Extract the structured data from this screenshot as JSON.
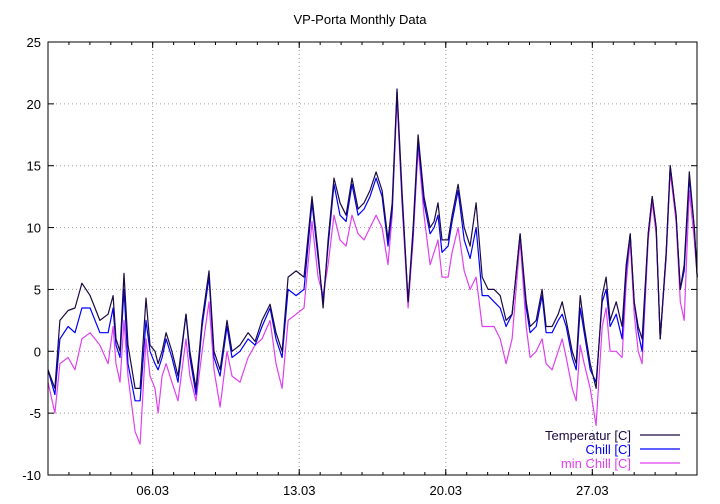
{
  "chart_data": {
    "type": "line",
    "title": "VP-Porta Monthly Data",
    "xlabel": "",
    "ylabel": "",
    "xlim": [
      0,
      31
    ],
    "ylim": [
      -10,
      25
    ],
    "x_unit": "days since 01.03",
    "yticks": [
      -10,
      -5,
      0,
      5,
      10,
      15,
      20,
      25
    ],
    "xticks": [
      {
        "value": 5,
        "label": "06.03"
      },
      {
        "value": 12,
        "label": "13.03"
      },
      {
        "value": 19,
        "label": "20.03"
      },
      {
        "value": 26,
        "label": "27.03"
      }
    ],
    "grid": true,
    "legend_position": "bottom-right",
    "x": [
      0.0,
      0.33,
      0.57,
      0.96,
      1.29,
      1.62,
      2.01,
      2.48,
      2.87,
      3.11,
      3.25,
      3.44,
      3.63,
      3.82,
      4.16,
      4.4,
      4.68,
      4.87,
      5.11,
      5.26,
      5.45,
      5.64,
      5.92,
      6.21,
      6.59,
      6.78,
      7.07,
      7.36,
      7.69,
      7.93,
      8.22,
      8.55,
      8.79,
      9.17,
      9.56,
      9.89,
      10.22,
      10.61,
      10.89,
      11.18,
      11.47,
      11.85,
      12.23,
      12.61,
      12.9,
      13.14,
      13.38,
      13.66,
      13.95,
      14.24,
      14.52,
      14.81,
      15.1,
      15.38,
      15.67,
      15.96,
      16.24,
      16.44,
      16.67,
      16.91,
      17.2,
      17.44,
      17.68,
      17.96,
      18.25,
      18.44,
      18.63,
      18.82,
      19.11,
      19.3,
      19.59,
      19.88,
      20.16,
      20.45,
      20.74,
      21.02,
      21.31,
      21.6,
      21.88,
      22.17,
      22.55,
      22.84,
      23.03,
      23.32,
      23.6,
      23.79,
      24.08,
      24.37,
      24.56,
      24.75,
      25.04,
      25.23,
      25.42,
      25.61,
      25.9,
      26.18,
      26.47,
      26.66,
      26.85,
      27.14,
      27.42,
      27.62,
      27.81,
      28.0,
      28.19,
      28.38,
      28.67,
      28.86,
      29.05,
      29.24,
      29.53,
      29.72,
      30.0,
      30.2,
      30.39,
      30.63,
      30.87,
      31.01
    ],
    "series": [
      {
        "name": "Temperatur [C]",
        "color": "#1c0a40",
        "values": [
          -1.5,
          -3,
          2.5,
          3.3,
          3.5,
          5.5,
          4.5,
          2.5,
          3,
          4.5,
          1,
          0,
          6.3,
          0.5,
          -3,
          -3,
          4.3,
          0.5,
          0,
          -1,
          0,
          1.5,
          0,
          -2,
          3,
          0,
          -3,
          2.5,
          6.5,
          0,
          -1.5,
          2.5,
          0,
          0.5,
          1.5,
          0.8,
          2.5,
          3.8,
          1.5,
          0,
          6,
          6.5,
          6,
          12.5,
          8,
          3.5,
          9,
          14,
          12,
          11,
          14,
          11.5,
          12,
          13,
          14.5,
          13,
          9,
          12,
          21.2,
          13,
          4,
          10,
          17.5,
          12.5,
          10,
          10.5,
          12,
          9,
          9,
          11,
          13.5,
          10,
          8.5,
          12,
          6,
          5,
          5,
          4.5,
          2.5,
          3,
          9.5,
          4,
          2,
          2.5,
          5,
          2,
          2,
          3,
          4,
          2.5,
          0,
          -1,
          4.5,
          2,
          -1,
          -3,
          4.5,
          6,
          2.5,
          4,
          2,
          7,
          9.5,
          4,
          2,
          1,
          9.5,
          12.5,
          10,
          1,
          8,
          15,
          11,
          5,
          7,
          14.5,
          10,
          6
        ]
      },
      {
        "name": "Chill [C]",
        "color": "#0000ff",
        "values": [
          -1.5,
          -3.5,
          1,
          2,
          1.5,
          3.5,
          3.5,
          1.5,
          1.5,
          3.5,
          0.5,
          -0.5,
          5,
          -1,
          -4,
          -4,
          2.5,
          0,
          -1,
          -1.5,
          -0.5,
          1,
          -0.5,
          -2.5,
          3,
          -0.5,
          -3.5,
          2,
          6,
          -0.5,
          -2,
          2,
          -0.5,
          0,
          1,
          0.5,
          2,
          3.5,
          1,
          -0.5,
          5,
          4.5,
          5,
          12,
          7.5,
          4,
          8.5,
          13.5,
          11,
          10.5,
          13.5,
          11,
          11.5,
          12.5,
          14,
          12.5,
          8.5,
          11.5,
          21,
          12.5,
          4,
          9.5,
          17,
          12,
          9.5,
          10,
          11,
          8,
          8.5,
          10.5,
          13,
          9,
          7.5,
          10,
          4.5,
          4.5,
          4,
          3.5,
          2,
          3,
          9.5,
          3.5,
          1.5,
          2,
          4.5,
          1.5,
          1.5,
          2.5,
          3,
          2,
          -0.5,
          -1.5,
          3.5,
          1.5,
          -1.5,
          -2.5,
          4,
          5,
          2,
          3,
          1,
          6.5,
          9.5,
          4,
          1.5,
          0,
          9.5,
          12.5,
          10,
          1,
          8,
          15,
          11,
          5,
          6.5,
          14,
          10,
          6
        ]
      },
      {
        "name": "min Chill [C]",
        "color": "#e040f0",
        "values": [
          -2.5,
          -5,
          -1,
          -0.5,
          -1.5,
          1,
          1.5,
          0.5,
          -1,
          2,
          -1,
          -2.5,
          2.5,
          -2,
          -6.5,
          -7.5,
          1,
          -2,
          -3,
          -5,
          -2,
          -1,
          -2.5,
          -4,
          1,
          -2,
          -4,
          0,
          4,
          -1.5,
          -4.5,
          0,
          -2,
          -2.5,
          -0.5,
          0.5,
          1,
          2.5,
          -1,
          -3,
          2.5,
          3,
          3.5,
          10.5,
          6,
          4.5,
          7,
          11,
          9,
          8.5,
          11,
          9.5,
          9,
          10,
          11,
          10,
          7,
          11,
          20.5,
          12,
          3.5,
          9,
          16.5,
          11,
          7,
          8,
          9,
          6,
          6,
          8,
          10,
          6.5,
          5,
          6,
          2,
          2,
          2,
          1,
          -1,
          1,
          9,
          2,
          -0.5,
          0,
          1,
          -1,
          -1.5,
          0,
          1,
          -0.5,
          -3,
          -4,
          0.5,
          -1,
          -3,
          -6,
          2,
          3.5,
          0,
          0,
          -0.5,
          5.5,
          9,
          3,
          0,
          -1,
          9,
          12,
          9.5,
          1,
          7.5,
          14.5,
          10.5,
          4,
          2.5,
          13,
          9,
          6
        ]
      }
    ]
  }
}
